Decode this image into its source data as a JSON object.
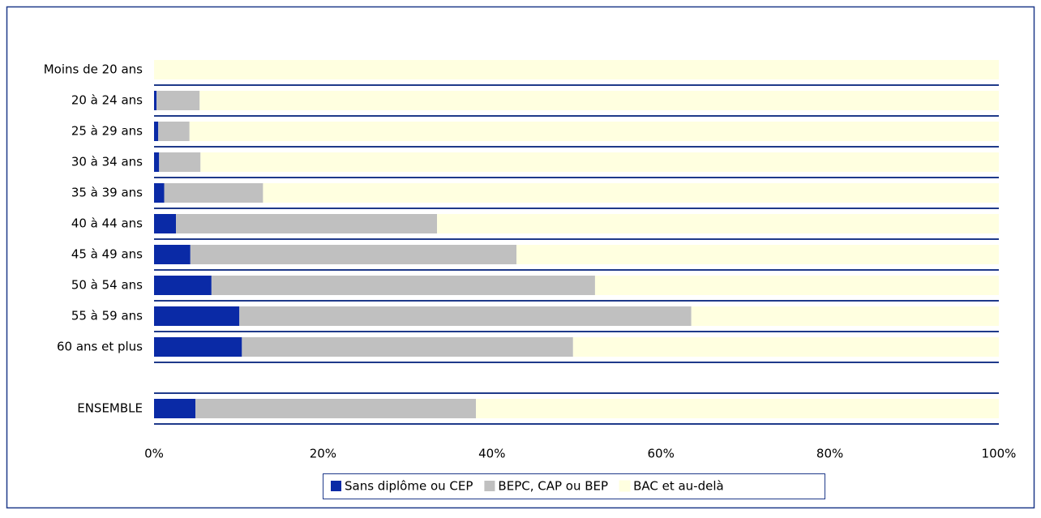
{
  "chart_data": {
    "type": "stacked-barh",
    "categories": [
      "Moins de 20 ans",
      "20 à 24 ans",
      "25 à 29 ans",
      "30 à 34 ans",
      "35 à 39 ans",
      "40 à 44 ans",
      "45 à 49 ans",
      "50 à 54 ans",
      "55 à 59 ans",
      "60 ans et plus",
      null,
      "ENSEMBLE"
    ],
    "series": [
      {
        "name": "Sans diplôme ou CEP",
        "color": "#0a2aa6",
        "values": [
          0,
          0.3,
          0.5,
          0.6,
          1.2,
          2.6,
          4.3,
          6.8,
          10.1,
          10.4,
          null,
          4.9
        ]
      },
      {
        "name": "BEPC, CAP ou BEP",
        "color": "#c0c0c0",
        "values": [
          0,
          5.1,
          3.7,
          4.9,
          11.7,
          30.9,
          38.6,
          45.4,
          53.5,
          39.2,
          null,
          33.2
        ]
      },
      {
        "name": "BAC et au-delà",
        "color": "#ffffe0",
        "values": [
          100,
          94.6,
          95.8,
          94.5,
          87.1,
          66.5,
          57.1,
          47.8,
          36.4,
          50.4,
          null,
          61.9
        ]
      }
    ],
    "xlim": [
      0,
      100
    ],
    "xticks": [
      {
        "value": 0,
        "label": "0%"
      },
      {
        "value": 20,
        "label": "20%"
      },
      {
        "value": 40,
        "label": "40%"
      },
      {
        "value": 60,
        "label": "60%"
      },
      {
        "value": 80,
        "label": "80%"
      },
      {
        "value": 100,
        "label": "100%"
      }
    ],
    "legend": "bottom"
  }
}
